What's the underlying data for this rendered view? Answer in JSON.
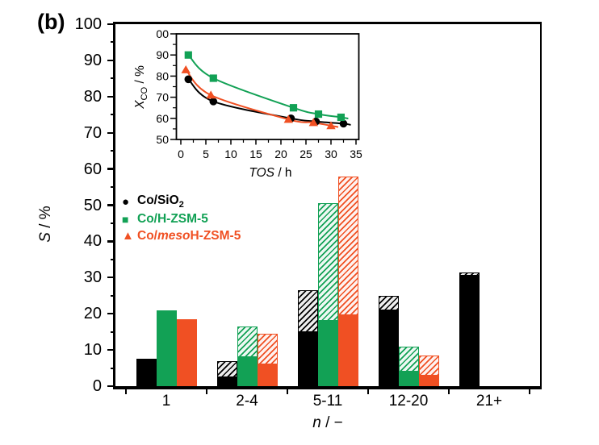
{
  "panel_label": "(b)",
  "colors": {
    "black": "#000000",
    "green": "#12A155",
    "orange": "#F05023"
  },
  "legend": {
    "items": [
      {
        "marker": "circle-icon",
        "glyph": "●",
        "color": "#000000",
        "label": "Co/SiO",
        "label_sub": "2"
      },
      {
        "marker": "square-icon",
        "glyph": "■",
        "color": "#12A155",
        "label": "Co/H-ZSM-5",
        "label_sub": ""
      },
      {
        "marker": "triangle-icon",
        "glyph": "▲",
        "color": "#F05023",
        "label_prefix": "Co/",
        "label_italic": "meso",
        "label_suffix": "H-ZSM-5"
      }
    ]
  },
  "main_axes": {
    "ylabel_italic": "S",
    "ylabel_rest": " / %",
    "xlabel_italic": "n",
    "xlabel_rest": " / −",
    "yticks": [
      0,
      10,
      20,
      30,
      40,
      50,
      60,
      70,
      80,
      90,
      100
    ],
    "ylim": [
      0,
      100
    ]
  },
  "inset_axes": {
    "ylabel_italic": "X",
    "ylabel_sub": "CO",
    "ylabel_rest": " / %",
    "xlabel_italic": "TOS",
    "xlabel_rest": " / h",
    "xticks": [
      0,
      5,
      10,
      15,
      20,
      25,
      30,
      35
    ],
    "yticks": [
      50,
      60,
      70,
      80,
      90,
      100
    ],
    "xlim": [
      0,
      35
    ],
    "ylim": [
      50,
      100
    ]
  },
  "chart_data": [
    {
      "id": "main",
      "type": "bar",
      "title": "",
      "xlabel": "n / −",
      "ylabel": "S / %",
      "ylim": [
        0,
        100
      ],
      "grid": false,
      "categories": [
        "1",
        "2-4",
        "5-11",
        "12-20",
        "21+"
      ],
      "series": [
        {
          "name": "Co/SiO2",
          "color": "#000000",
          "solid_values": [
            7.5,
            2.5,
            15,
            21,
            30.5
          ],
          "total_values": [
            7.5,
            7,
            26.5,
            25,
            31.5
          ]
        },
        {
          "name": "Co/H-ZSM-5",
          "color": "#12A155",
          "solid_values": [
            21,
            8,
            18,
            4,
            0
          ],
          "total_values": [
            21,
            16.5,
            50.5,
            11,
            0
          ]
        },
        {
          "name": "Co/mesoH-ZSM-5",
          "color": "#F05023",
          "solid_values": [
            18.5,
            6,
            19.5,
            3,
            0
          ],
          "total_values": [
            18.5,
            14.5,
            58,
            8.5,
            0
          ]
        }
      ],
      "note": "hatched segment spans from solid_value up to total_value"
    },
    {
      "id": "inset",
      "type": "scatter",
      "title": "",
      "xlabel": "TOS / h",
      "ylabel": "X_CO / %",
      "xlim": [
        0,
        35
      ],
      "ylim": [
        50,
        100
      ],
      "grid": false,
      "series": [
        {
          "name": "Co/SiO2",
          "marker": "circle",
          "color": "#000000",
          "x": [
            1.5,
            6.5,
            22,
            27,
            32.5
          ],
          "y": [
            78.5,
            68,
            60,
            58.5,
            57.5
          ]
        },
        {
          "name": "Co/mesoH-ZSM-5",
          "marker": "triangle",
          "color": "#F05023",
          "x": [
            1,
            6,
            21.5,
            26.5,
            30
          ],
          "y": [
            83,
            71,
            59.5,
            58,
            56.5
          ]
        },
        {
          "name": "Co/H-ZSM-5",
          "marker": "square",
          "color": "#12A155",
          "x": [
            1.5,
            6.5,
            22.5,
            27.5,
            32
          ],
          "y": [
            90,
            79,
            65,
            62,
            60.5
          ]
        }
      ]
    }
  ]
}
